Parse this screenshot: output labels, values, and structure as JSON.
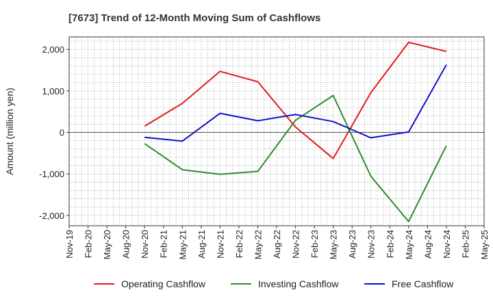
{
  "chart_data": {
    "type": "line",
    "title": "[7673]  Trend of 12-Month Moving Sum of Cashflows",
    "ylabel": "Amount (million yen)",
    "xlabel": "",
    "ylim": [
      -2250,
      2300
    ],
    "yticks": [
      2000,
      1000,
      0,
      -1000,
      -2000
    ],
    "ytick_labels": [
      "2,000",
      "1,000",
      "0",
      "-1,000",
      "-2,000"
    ],
    "categories": [
      "Nov-19",
      "Feb-20",
      "May-20",
      "Aug-20",
      "Nov-20",
      "Feb-21",
      "May-21",
      "Aug-21",
      "Nov-21",
      "Feb-22",
      "May-22",
      "Aug-22",
      "Nov-22",
      "Feb-23",
      "May-23",
      "Aug-23",
      "Nov-23",
      "Feb-24",
      "May-24",
      "Aug-24",
      "Nov-24",
      "Feb-25",
      "May-25"
    ],
    "grid": true,
    "legend_position": "bottom",
    "series": [
      {
        "name": "Operating Cashflow",
        "color": "#e31a1c",
        "values": [
          null,
          null,
          null,
          null,
          150,
          null,
          700,
          null,
          1470,
          null,
          1220,
          null,
          130,
          null,
          -630,
          null,
          960,
          null,
          2170,
          null,
          1950,
          null,
          null
        ]
      },
      {
        "name": "Investing Cashflow",
        "color": "#2e8b2e",
        "values": [
          null,
          null,
          null,
          null,
          -270,
          null,
          -900,
          null,
          -1010,
          null,
          -940,
          null,
          290,
          null,
          890,
          null,
          -1060,
          null,
          -2150,
          null,
          -320,
          null,
          null
        ]
      },
      {
        "name": "Free Cashflow",
        "color": "#1010cc",
        "values": [
          null,
          null,
          null,
          null,
          -120,
          null,
          -210,
          null,
          460,
          null,
          280,
          null,
          430,
          null,
          260,
          null,
          -130,
          null,
          10,
          null,
          1630,
          null,
          null
        ]
      }
    ]
  }
}
